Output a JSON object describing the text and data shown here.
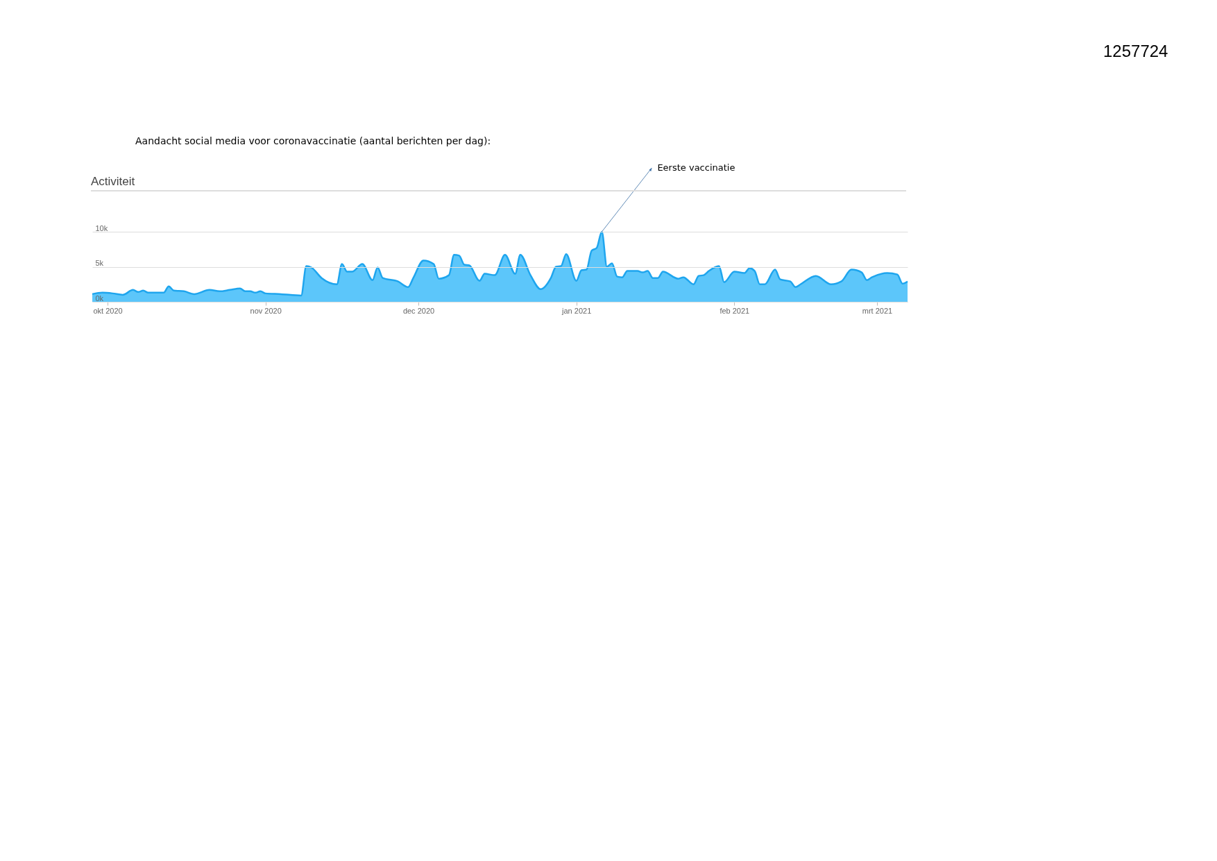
{
  "chart_data": {
    "type": "area",
    "title": "Aandacht social media voor coronavaccinatie (aantal berichten per dag):",
    "subtitle": "Activiteit",
    "annotations": [
      "1257724",
      {
        "text": "Eerste vaccinatie",
        "x": "2021-01-06",
        "y": 10000
      }
    ],
    "x": [
      "2020-09-28",
      "2020-09-30",
      "2020-10-02",
      "2020-10-04",
      "2020-10-06",
      "2020-10-07",
      "2020-10-08",
      "2020-10-09",
      "2020-10-12",
      "2020-10-13",
      "2020-10-14",
      "2020-10-16",
      "2020-10-18",
      "2020-10-21",
      "2020-10-23",
      "2020-10-25",
      "2020-10-27",
      "2020-10-28",
      "2020-10-29",
      "2020-10-30",
      "2020-10-31",
      "2020-11-01",
      "2020-11-04",
      "2020-11-08",
      "2020-11-09",
      "2020-11-10",
      "2020-11-12",
      "2020-11-15",
      "2020-11-16",
      "2020-11-17",
      "2020-11-18",
      "2020-11-20",
      "2020-11-22",
      "2020-11-23",
      "2020-11-24",
      "2020-11-27",
      "2020-11-29",
      "2020-11-30",
      "2020-12-02",
      "2020-12-04",
      "2020-12-05",
      "2020-12-07",
      "2020-12-08",
      "2020-12-09",
      "2020-12-10",
      "2020-12-11",
      "2020-12-13",
      "2020-12-14",
      "2020-12-16",
      "2020-12-18",
      "2020-12-20",
      "2020-12-21",
      "2020-12-23",
      "2020-12-25",
      "2020-12-27",
      "2020-12-28",
      "2020-12-29",
      "2020-12-30",
      "2021-01-01",
      "2021-01-02",
      "2021-01-03",
      "2021-01-04",
      "2021-01-05",
      "2021-01-06",
      "2021-01-07",
      "2021-01-08",
      "2021-01-09",
      "2021-01-10",
      "2021-01-11",
      "2021-01-13",
      "2021-01-14",
      "2021-01-15",
      "2021-01-16",
      "2021-01-17",
      "2021-01-18",
      "2021-01-21",
      "2021-01-22",
      "2021-01-24",
      "2021-01-25",
      "2021-01-26",
      "2021-01-27",
      "2021-01-29",
      "2021-01-30",
      "2021-02-01",
      "2021-02-03",
      "2021-02-04",
      "2021-02-05",
      "2021-02-06",
      "2021-02-07",
      "2021-02-09",
      "2021-02-10",
      "2021-02-12",
      "2021-02-13",
      "2021-02-14",
      "2021-02-17",
      "2021-02-20",
      "2021-02-22",
      "2021-02-24",
      "2021-02-26",
      "2021-02-27",
      "2021-02-28",
      "2021-03-03",
      "2021-03-05",
      "2021-03-06",
      "2021-03-07"
    ],
    "series": [
      {
        "color": "#5cc6fa",
        "values": [
          1100,
          1300,
          1200,
          1000,
          1700,
          1400,
          1600,
          1300,
          1300,
          2200,
          1600,
          1500,
          1100,
          1700,
          1500,
          1700,
          1900,
          1500,
          1500,
          1300,
          1500,
          1200,
          1100,
          900,
          5100,
          4900,
          3400,
          2500,
          5400,
          4300,
          4300,
          5400,
          3100,
          4900,
          3400,
          2900,
          2100,
          3400,
          5900,
          5400,
          3300,
          3800,
          6700,
          6600,
          5300,
          5200,
          3000,
          4000,
          3800,
          6700,
          4000,
          6700,
          3800,
          1800,
          3400,
          5000,
          5100,
          6800,
          3000,
          4500,
          4600,
          7300,
          7700,
          10000,
          5000,
          5500,
          3600,
          3500,
          4400,
          4400,
          4200,
          4400,
          3400,
          3400,
          4300,
          3300,
          3500,
          2500,
          3700,
          3800,
          4400,
          5100,
          2800,
          4300,
          4100,
          4800,
          4400,
          2500,
          2500,
          4600,
          3200,
          2900,
          2100,
          2500,
          3700,
          2500,
          2900,
          4600,
          4200,
          3100,
          3500,
          4100,
          3900,
          2600,
          2900
        ]
      }
    ],
    "xlim": [
      "2020-09-28",
      "2021-03-07"
    ],
    "xticks": [
      {
        "value": "2020-10-01",
        "label": "okt 2020"
      },
      {
        "value": "2020-11-01",
        "label": "nov 2020"
      },
      {
        "value": "2020-12-01",
        "label": "dec 2020"
      },
      {
        "value": "2021-01-01",
        "label": "jan 2021"
      },
      {
        "value": "2021-02-01",
        "label": "feb 2021"
      },
      {
        "value": "2021-03-01",
        "label": "mrt 2021"
      }
    ],
    "ylim": [
      0,
      10000
    ],
    "yticks": [
      {
        "value": 0,
        "label": "0k"
      },
      {
        "value": 5000,
        "label": "5k"
      },
      {
        "value": 10000,
        "label": "10k"
      }
    ],
    "grid": "y"
  }
}
